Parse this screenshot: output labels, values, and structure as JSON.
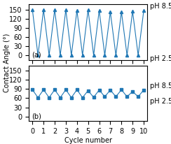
{
  "chart_data": [
    {
      "type": "line",
      "x": [
        0,
        0.5,
        1,
        1.5,
        2,
        2.5,
        3,
        3.5,
        4,
        4.5,
        5,
        5.5,
        6,
        6.5,
        7,
        7.5,
        8,
        8.5,
        9,
        9.5,
        10
      ],
      "values": [
        150,
        0,
        150,
        0,
        150,
        0,
        150,
        0,
        148,
        0,
        150,
        0,
        148,
        0,
        143,
        0,
        143,
        0,
        145,
        0,
        147
      ],
      "marker": "triangle",
      "annotations": [
        "(a)",
        "pH 8.5",
        "pH 2.5"
      ],
      "y_label": "Contact Angle (°)",
      "xlim": [
        -0.3,
        10.3
      ],
      "xticks": [
        0,
        1,
        2,
        3,
        4,
        5,
        6,
        7,
        8,
        9,
        10
      ],
      "ylim": [
        -15,
        168
      ],
      "yticks": [
        0,
        30,
        60,
        90,
        120,
        150
      ],
      "tick_labels": "y"
    },
    {
      "type": "line",
      "x": [
        0,
        0.5,
        1,
        1.5,
        2,
        2.5,
        3,
        3.5,
        4,
        4.5,
        5,
        5.5,
        6,
        6.5,
        7,
        7.5,
        8,
        8.5,
        9,
        9.5,
        10
      ],
      "values": [
        88,
        62,
        88,
        62,
        88,
        62,
        88,
        62,
        88,
        62,
        85,
        63,
        87,
        65,
        87,
        65,
        88,
        65,
        82,
        65,
        87
      ],
      "marker": "square",
      "annotations": [
        "(b)",
        "pH 8.5",
        "pH 2.5"
      ],
      "x_label": "Cycle number",
      "xlim": [
        -0.3,
        10.3
      ],
      "xticks": [
        0,
        1,
        2,
        3,
        4,
        5,
        6,
        7,
        8,
        9,
        10
      ],
      "ylim": [
        -15,
        168
      ],
      "yticks": [
        0,
        30,
        60,
        90,
        120,
        150
      ]
    }
  ]
}
